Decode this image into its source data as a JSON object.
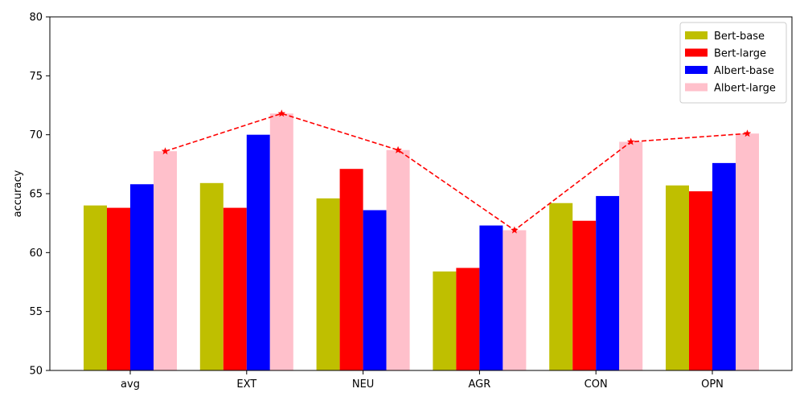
{
  "chart_data": {
    "type": "bar",
    "title": "",
    "xlabel": "",
    "ylabel": "accuracy",
    "ylim": [
      50,
      80
    ],
    "yticks": [
      50,
      55,
      60,
      65,
      70,
      75,
      80
    ],
    "categories": [
      "avg",
      "EXT",
      "NEU",
      "AGR",
      "CON",
      "OPN"
    ],
    "series": [
      {
        "name": "Bert-base",
        "color": "#bfbf00",
        "values": [
          64.0,
          65.9,
          64.6,
          58.4,
          64.2,
          65.7
        ]
      },
      {
        "name": "Bert-large",
        "color": "#ff0000",
        "values": [
          63.8,
          63.8,
          67.1,
          58.7,
          62.7,
          65.2
        ]
      },
      {
        "name": "Albert-base",
        "color": "#0000ff",
        "values": [
          65.8,
          70.0,
          63.6,
          62.3,
          64.8,
          67.6
        ]
      },
      {
        "name": "Albert-large",
        "color": "#ffc0cb",
        "values": [
          68.6,
          71.8,
          68.7,
          61.9,
          69.4,
          70.1
        ]
      }
    ],
    "trend_line": {
      "color": "#ff0000",
      "style": "dashed",
      "marker": "star",
      "values": [
        68.6,
        71.8,
        68.7,
        61.9,
        69.4,
        70.1
      ]
    },
    "legend": {
      "placement": "top-right"
    },
    "grid": false
  }
}
